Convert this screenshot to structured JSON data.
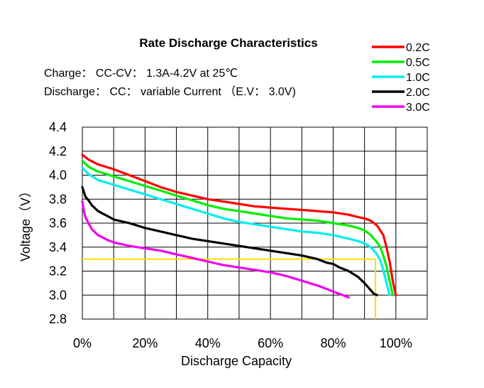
{
  "chart_data": {
    "type": "line",
    "title": "Rate Discharge Characteristics",
    "subtitle_lines": [
      "Charge： CC-CV： 1.3A-4.2V at 25℃",
      "Discharge： CC： variable Current （E.V： 3.0V)"
    ],
    "xlabel": "Discharge Capacity",
    "ylabel": "Voltage（V）",
    "xlim": [
      0,
      110
    ],
    "ylim": [
      2.8,
      4.4
    ],
    "xticks": [
      {
        "value": 0,
        "label": "0%"
      },
      {
        "value": 20,
        "label": "20%"
      },
      {
        "value": 40,
        "label": "40%"
      },
      {
        "value": 60,
        "label": "60%"
      },
      {
        "value": 80,
        "label": "80%"
      },
      {
        "value": 100,
        "label": "100%"
      }
    ],
    "yticks": [
      {
        "value": 2.8,
        "label": "2.8"
      },
      {
        "value": 3.0,
        "label": "3.0"
      },
      {
        "value": 3.2,
        "label": "3.2"
      },
      {
        "value": 3.4,
        "label": "3.4"
      },
      {
        "value": 3.6,
        "label": "3.6"
      },
      {
        "value": 3.8,
        "label": "3.8"
      },
      {
        "value": 4.0,
        "label": "4.0"
      },
      {
        "value": 4.2,
        "label": "4.2"
      },
      {
        "value": 4.4,
        "label": "4.4"
      }
    ],
    "vgrid_x": [
      0,
      10,
      20,
      30,
      40,
      50,
      60,
      70,
      80,
      90,
      100,
      110
    ],
    "grid": true,
    "legend_position": "top-right",
    "series": [
      {
        "name": "0.2C",
        "color": "#ff0000",
        "x": [
          0,
          2,
          5,
          10,
          15,
          20,
          25,
          30,
          35,
          40,
          45,
          50,
          55,
          60,
          65,
          70,
          75,
          80,
          85,
          88,
          90,
          92,
          94,
          96,
          97,
          98,
          99,
          100
        ],
        "y": [
          4.17,
          4.13,
          4.09,
          4.05,
          4.0,
          3.95,
          3.9,
          3.86,
          3.83,
          3.8,
          3.78,
          3.76,
          3.74,
          3.73,
          3.72,
          3.71,
          3.7,
          3.69,
          3.67,
          3.65,
          3.64,
          3.62,
          3.58,
          3.5,
          3.4,
          3.28,
          3.12,
          3.0
        ]
      },
      {
        "name": "0.5C",
        "color": "#00ee00",
        "x": [
          0,
          2,
          5,
          10,
          15,
          20,
          25,
          30,
          35,
          40,
          45,
          50,
          55,
          60,
          65,
          70,
          75,
          80,
          85,
          88,
          90,
          92,
          94,
          95,
          96,
          97,
          98,
          99
        ],
        "y": [
          4.12,
          4.07,
          4.03,
          3.99,
          3.95,
          3.91,
          3.87,
          3.83,
          3.79,
          3.75,
          3.72,
          3.7,
          3.68,
          3.66,
          3.64,
          3.63,
          3.62,
          3.6,
          3.58,
          3.56,
          3.54,
          3.5,
          3.44,
          3.4,
          3.33,
          3.24,
          3.12,
          3.0
        ]
      },
      {
        "name": "1.0C",
        "color": "#00eeee",
        "x": [
          0,
          2,
          5,
          10,
          15,
          20,
          25,
          30,
          35,
          40,
          45,
          50,
          55,
          60,
          65,
          70,
          75,
          80,
          85,
          88,
          90,
          92,
          94,
          95,
          96,
          97,
          98
        ],
        "y": [
          4.06,
          4.01,
          3.96,
          3.92,
          3.88,
          3.84,
          3.8,
          3.76,
          3.72,
          3.68,
          3.64,
          3.61,
          3.59,
          3.57,
          3.55,
          3.53,
          3.52,
          3.5,
          3.47,
          3.45,
          3.43,
          3.4,
          3.34,
          3.29,
          3.21,
          3.1,
          3.0
        ]
      },
      {
        "name": "2.0C",
        "color": "#000000",
        "x": [
          0,
          0.5,
          1,
          2,
          3,
          5,
          8,
          10,
          15,
          20,
          25,
          30,
          35,
          40,
          45,
          50,
          55,
          60,
          65,
          70,
          75,
          78,
          80,
          82,
          85,
          88,
          90,
          91,
          92,
          93,
          94
        ],
        "y": [
          3.9,
          3.86,
          3.82,
          3.79,
          3.75,
          3.7,
          3.66,
          3.63,
          3.6,
          3.56,
          3.53,
          3.5,
          3.47,
          3.45,
          3.43,
          3.41,
          3.39,
          3.37,
          3.35,
          3.33,
          3.3,
          3.27,
          3.26,
          3.23,
          3.2,
          3.15,
          3.1,
          3.07,
          3.04,
          3.01,
          3.0
        ]
      },
      {
        "name": "3.0C",
        "color": "#ee00ee",
        "x": [
          0,
          0.5,
          1,
          2,
          3,
          5,
          8,
          10,
          15,
          20,
          25,
          30,
          35,
          40,
          45,
          50,
          55,
          60,
          65,
          70,
          75,
          78,
          80,
          82,
          84,
          85
        ],
        "y": [
          3.78,
          3.7,
          3.65,
          3.6,
          3.55,
          3.5,
          3.46,
          3.44,
          3.41,
          3.39,
          3.37,
          3.34,
          3.31,
          3.28,
          3.25,
          3.23,
          3.21,
          3.19,
          3.16,
          3.12,
          3.08,
          3.05,
          3.03,
          3.01,
          2.99,
          2.98
        ]
      }
    ],
    "reference_lines": {
      "color": "#ffdd00",
      "cutoff_voltage": 3.3,
      "capacity_mark": 93.5
    }
  }
}
